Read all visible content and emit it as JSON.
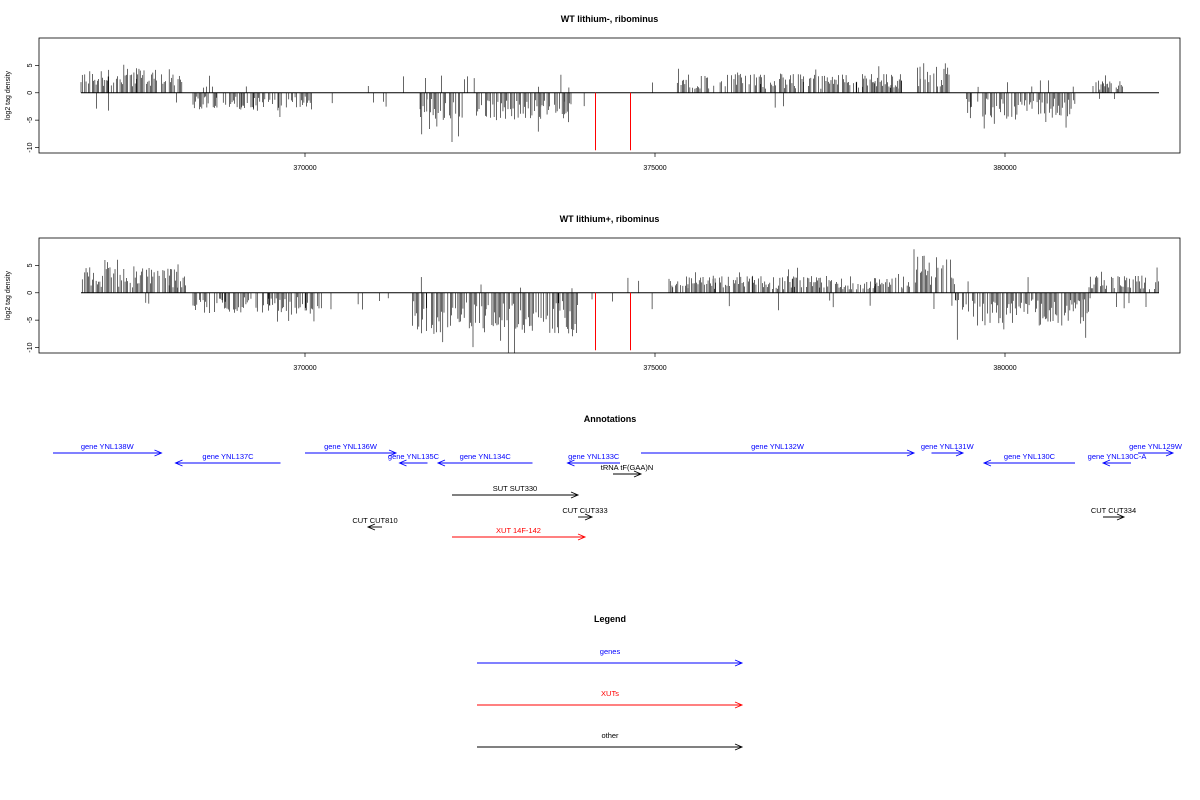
{
  "chart_data": [
    {
      "type": "bar",
      "title": "WT lithium-, ribominus",
      "ylabel": "log2 tag density",
      "xlim": [
        366200,
        382500
      ],
      "ylim": [
        -11,
        10
      ],
      "xticks": [
        370000,
        375000,
        380000
      ],
      "xtick_labels": [
        "370000",
        "375000",
        "380000"
      ],
      "yticks": [
        -10,
        -5,
        0,
        5
      ],
      "ytick_labels": [
        "-10",
        "-5",
        "0",
        "5"
      ],
      "signal_regions": [
        {
          "strand": "plus",
          "start": 366800,
          "end": 368250,
          "level": 3.5
        },
        {
          "strand": "minus",
          "start": 368400,
          "end": 370100,
          "level": 2.5
        },
        {
          "strand": "minus",
          "start": 371650,
          "end": 372250,
          "level": 6.5
        },
        {
          "strand": "minus",
          "start": 372450,
          "end": 373800,
          "level": 4.0
        },
        {
          "strand": "plus",
          "start": 375300,
          "end": 378600,
          "level": 2.8
        },
        {
          "strand": "plus",
          "start": 378750,
          "end": 379200,
          "level": 4.5
        },
        {
          "strand": "minus",
          "start": 379450,
          "end": 381000,
          "level": 4.0
        },
        {
          "strand": "plus",
          "start": 381300,
          "end": 381700,
          "level": 1.8
        }
      ],
      "highlight_bars": [
        {
          "x": 374150,
          "y": -10.5,
          "color": "#ff0000"
        },
        {
          "x": 374650,
          "y": -10.5,
          "color": "#ff0000"
        }
      ]
    },
    {
      "type": "bar",
      "title": "WT lithium+, ribominus",
      "ylabel": "log2 tag density",
      "xlim": [
        366200,
        382500
      ],
      "ylim": [
        -11,
        10
      ],
      "xticks": [
        370000,
        375000,
        380000
      ],
      "xtick_labels": [
        "370000",
        "375000",
        "380000"
      ],
      "yticks": [
        -10,
        -5,
        0,
        5
      ],
      "ytick_labels": [
        "-10",
        "-5",
        "0",
        "5"
      ],
      "signal_regions": [
        {
          "strand": "plus",
          "start": 366800,
          "end": 368300,
          "level": 3.8
        },
        {
          "strand": "minus",
          "start": 368400,
          "end": 370200,
          "level": 3.2
        },
        {
          "strand": "minus",
          "start": 371500,
          "end": 373900,
          "level": 6.0
        },
        {
          "strand": "plus",
          "start": 375200,
          "end": 378650,
          "level": 2.5
        },
        {
          "strand": "plus",
          "start": 378700,
          "end": 379300,
          "level": 5.5
        },
        {
          "strand": "minus",
          "start": 379300,
          "end": 381200,
          "level": 4.8
        },
        {
          "strand": "plus",
          "start": 381200,
          "end": 382200,
          "level": 2.5
        }
      ],
      "highlight_bars": [
        {
          "x": 374150,
          "y": -10.5,
          "color": "#ff0000"
        },
        {
          "x": 374650,
          "y": -10.5,
          "color": "#ff0000"
        }
      ]
    }
  ],
  "annotations": {
    "title": "Annotations",
    "items": [
      {
        "label": "gene YNL138W",
        "start": 366400,
        "end": 367950,
        "strand": "+",
        "row": 0,
        "color": "#0000ff"
      },
      {
        "label": "gene YNL137C",
        "start": 368150,
        "end": 369650,
        "strand": "-",
        "row": 1,
        "color": "#0000ff"
      },
      {
        "label": "gene YNL136W",
        "start": 370000,
        "end": 371300,
        "strand": "+",
        "row": 0,
        "color": "#0000ff"
      },
      {
        "label": "gene YNL135C",
        "start": 371350,
        "end": 371750,
        "strand": "-",
        "row": 1,
        "color": "#0000ff"
      },
      {
        "label": "gene YNL134C",
        "start": 371900,
        "end": 373250,
        "strand": "-",
        "row": 1,
        "color": "#0000ff"
      },
      {
        "label": "gene YNL133C",
        "start": 373750,
        "end": 374500,
        "strand": "-",
        "row": 1,
        "color": "#0000ff"
      },
      {
        "label": "tRNA tF(GAA)N",
        "start": 374400,
        "end": 374800,
        "strand": "+",
        "row": 2,
        "color": "#000000"
      },
      {
        "label": "gene YNL132W",
        "start": 374800,
        "end": 378700,
        "strand": "+",
        "row": 0,
        "color": "#0000ff"
      },
      {
        "label": "gene YNL131W",
        "start": 378950,
        "end": 379400,
        "strand": "+",
        "row": 0,
        "color": "#0000ff"
      },
      {
        "label": "gene YNL130C",
        "start": 379700,
        "end": 381000,
        "strand": "-",
        "row": 1,
        "color": "#0000ff"
      },
      {
        "label": "gene YNL130C-A",
        "start": 381400,
        "end": 381800,
        "strand": "-",
        "row": 1,
        "color": "#0000ff"
      },
      {
        "label": "gene YNL129W",
        "start": 381900,
        "end": 382400,
        "strand": "+",
        "row": 0,
        "color": "#0000ff"
      },
      {
        "label": "SUT SUT330",
        "start": 372100,
        "end": 373900,
        "strand": "+",
        "row": 3,
        "color": "#000000"
      },
      {
        "label": "CUT CUT333",
        "start": 373900,
        "end": 374100,
        "strand": "+",
        "row": 4,
        "color": "#000000"
      },
      {
        "label": "CUT CUT810",
        "start": 370900,
        "end": 371100,
        "strand": "-",
        "row": 5,
        "color": "#000000"
      },
      {
        "label": "XUT 14F-142",
        "start": 372100,
        "end": 374000,
        "strand": "+",
        "row": 6,
        "color": "#ff0000"
      },
      {
        "label": "CUT CUT334",
        "start": 381400,
        "end": 381700,
        "strand": "+",
        "row": 4,
        "color": "#000000"
      }
    ]
  },
  "legend": {
    "title": "Legend",
    "items": [
      {
        "label": "genes",
        "color": "#0000ff"
      },
      {
        "label": "XUTs",
        "color": "#ff0000"
      },
      {
        "label": "other",
        "color": "#000000"
      }
    ]
  }
}
